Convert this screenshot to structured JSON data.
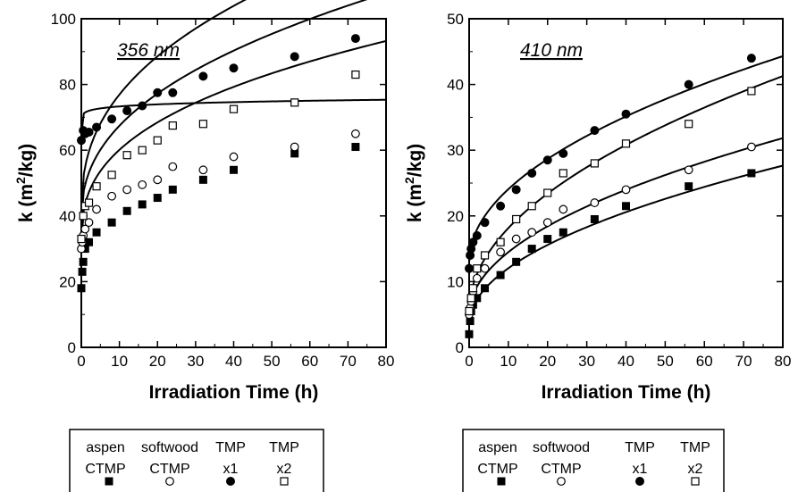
{
  "chart_data": [
    {
      "type": "scatter",
      "annotation": "356 nm",
      "xlabel": "Irradiation Time (h)",
      "ylabel": "k (m²/kg)",
      "ylabel_main": "k (m",
      "ylabel_sup": "2",
      "ylabel_end": "/kg)",
      "xlim": [
        0,
        80
      ],
      "ylim": [
        0,
        100
      ],
      "xticks": [
        0,
        10,
        20,
        30,
        40,
        50,
        60,
        70,
        80
      ],
      "yticks": [
        0,
        20,
        40,
        60,
        80,
        100
      ],
      "grid": false,
      "series": [
        {
          "marker": "filled-square",
          "x": [
            0,
            0.25,
            0.5,
            1,
            2,
            4,
            8,
            12,
            16,
            20,
            24,
            32,
            40,
            56,
            72
          ],
          "y": [
            18,
            23,
            26,
            30,
            32,
            35,
            38,
            41.5,
            43.5,
            45.5,
            48,
            51,
            54,
            59,
            61
          ]
        },
        {
          "marker": "open-circle",
          "x": [
            0,
            0.25,
            0.5,
            1,
            2,
            4,
            8,
            12,
            16,
            20,
            24,
            32,
            40,
            56,
            72
          ],
          "y": [
            30,
            32,
            34,
            36,
            38,
            42,
            46,
            48,
            49.5,
            51,
            55,
            54,
            58,
            61,
            65
          ]
        },
        {
          "marker": "filled-circle",
          "x": [
            0,
            0.5,
            1,
            2,
            4,
            8,
            12,
            16,
            20,
            24,
            32,
            40,
            56,
            72
          ],
          "y": [
            63,
            66,
            65,
            65.5,
            67,
            69.5,
            72,
            73.5,
            77.5,
            77.5,
            82.5,
            85,
            88.5,
            94
          ]
        },
        {
          "marker": "open-square",
          "x": [
            0,
            0.5,
            1,
            2,
            4,
            8,
            12,
            16,
            20,
            24,
            32,
            40,
            56,
            72
          ],
          "y": [
            33,
            40,
            43,
            44,
            49,
            52.5,
            58.5,
            60,
            63,
            67.5,
            68,
            72.5,
            74.5,
            83
          ]
        }
      ],
      "fits": [
        {
          "a": 31.5,
          "b": 0.37,
          "c": 12.2
        },
        {
          "a": 38.5,
          "b": 0.42,
          "c": 11.0
        },
        {
          "a": 64.5,
          "b": 0.1,
          "c": 7.0
        },
        {
          "a": 40.5,
          "b": 0.4,
          "c": 14.5
        }
      ]
    },
    {
      "type": "scatter",
      "annotation": "410 nm",
      "xlabel": "Irradiation Time (h)",
      "ylabel": "k (m²/kg)",
      "ylabel_main": "k (m",
      "ylabel_sup": "2",
      "ylabel_end": "/kg)",
      "xlim": [
        0,
        80
      ],
      "ylim": [
        0,
        50
      ],
      "xticks": [
        0,
        10,
        20,
        30,
        40,
        50,
        60,
        70,
        80
      ],
      "yticks": [
        0,
        10,
        20,
        30,
        40,
        50
      ],
      "grid": false,
      "series": [
        {
          "marker": "filled-square",
          "x": [
            0,
            0.25,
            0.5,
            1,
            2,
            4,
            8,
            12,
            16,
            20,
            24,
            32,
            40,
            56,
            72
          ],
          "y": [
            2,
            4,
            5.5,
            6.5,
            7.5,
            9,
            11,
            13,
            15,
            16.5,
            17.5,
            19.5,
            21.5,
            24.5,
            26.5
          ]
        },
        {
          "marker": "open-circle",
          "x": [
            0,
            0.25,
            0.5,
            1,
            2,
            4,
            8,
            12,
            16,
            20,
            24,
            32,
            40,
            56,
            72
          ],
          "y": [
            5,
            6,
            7,
            8.5,
            10.5,
            12,
            14.5,
            16.5,
            17.5,
            19,
            21,
            22,
            24,
            27,
            30.5
          ]
        },
        {
          "marker": "filled-circle",
          "x": [
            0,
            0.25,
            0.5,
            1,
            2,
            4,
            8,
            12,
            16,
            20,
            24,
            32,
            40,
            56,
            72
          ],
          "y": [
            12,
            14,
            15,
            16,
            17,
            19,
            21.5,
            24,
            26.5,
            28.5,
            29.5,
            33,
            35.5,
            40,
            44
          ]
        },
        {
          "marker": "open-square",
          "x": [
            0,
            0.5,
            1,
            2,
            4,
            8,
            12,
            16,
            20,
            24,
            32,
            40,
            56,
            72
          ],
          "y": [
            5.5,
            7.5,
            9,
            12,
            14,
            16,
            19.5,
            21.5,
            23.5,
            26.5,
            28,
            31,
            34,
            39
          ]
        }
      ],
      "fits": [
        {
          "a": 3.5,
          "b": 0.5,
          "c": 2.7
        },
        {
          "a": 5.0,
          "b": 0.5,
          "c": 3.0
        },
        {
          "a": 13.0,
          "b": 0.5,
          "c": 3.5
        },
        {
          "a": 5.5,
          "b": 0.5,
          "c": 4.0
        }
      ]
    }
  ],
  "legend": {
    "items": [
      {
        "line1": "aspen",
        "line2": "CTMP",
        "marker": "filled-square"
      },
      {
        "line1": "softwood",
        "line2": "CTMP",
        "marker": "open-circle"
      },
      {
        "line1": "TMP",
        "line2": "x1",
        "marker": "filled-circle"
      },
      {
        "line1": "TMP",
        "line2": "x2",
        "marker": "open-square"
      }
    ]
  }
}
